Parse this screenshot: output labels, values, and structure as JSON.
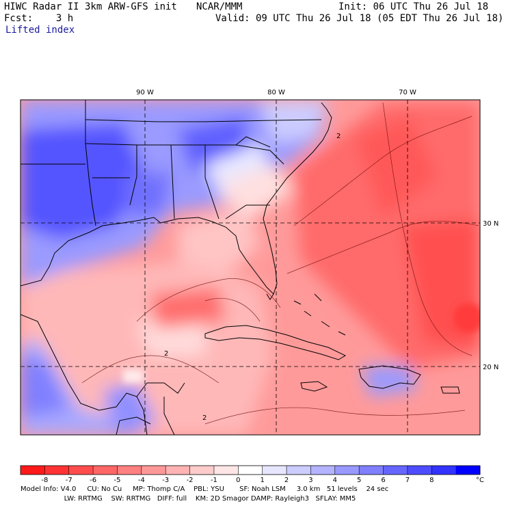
{
  "header": {
    "title": "HIWC Radar II 3km ARW-GFS init",
    "org": "NCAR/MMM",
    "init": "Init: 06 UTC Thu 26 Jul 18",
    "fcst": "Fcst:    3 h",
    "valid": "Valid: 09 UTC Thu 26 Jul 18 (05 EDT Thu 26 Jul 18)",
    "field": "Lifted index"
  },
  "map": {
    "lon_labels": [
      "90 W",
      "80 W",
      "70 W"
    ],
    "lat_labels": [
      "30 N",
      "20 N"
    ],
    "contour_labels": [
      "2",
      "2",
      "2"
    ]
  },
  "colorbar": {
    "ticks": [
      "-8",
      "-7",
      "-6",
      "-5",
      "-4",
      "-3",
      "-2",
      "-1",
      "0",
      "1",
      "2",
      "3",
      "4",
      "5",
      "6",
      "7",
      "8"
    ],
    "unit": "°C",
    "colors": [
      "#ff1a1a",
      "#ff3333",
      "#ff4d4d",
      "#ff6666",
      "#ff8080",
      "#ff9999",
      "#ffb3b3",
      "#ffcccc",
      "#ffe6e6",
      "#ffffff",
      "#e6e6ff",
      "#ccccff",
      "#b3b3ff",
      "#9999ff",
      "#8080ff",
      "#6666ff",
      "#4d4dff",
      "#3333ff",
      "#0000ff"
    ]
  },
  "footer": {
    "line1": "Model Info: V4.0     CU: No Cu     MP: Thomp C/A    PBL: YSU       SF: Noah LSM     3.0 km   51 levels    24 sec",
    "line2": "                    LW: RRTMG    SW: RRTMG   DIFF: full    KM: 2D Smagor DAMP: Rayleigh3   SFLAY: MM5"
  }
}
